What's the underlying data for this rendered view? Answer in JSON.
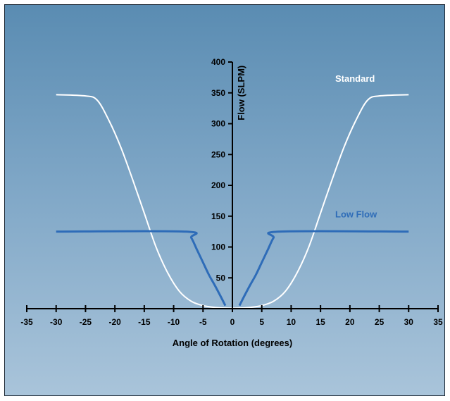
{
  "chart_data": {
    "type": "line",
    "title": "",
    "xlabel": "Angle of Rotation (degrees)",
    "ylabel": "Flow (SLPM)",
    "xlim": [
      -35,
      35
    ],
    "ylim": [
      0,
      400
    ],
    "x_ticks": [
      "-35",
      "-30",
      "-25",
      "-20",
      "-15",
      "-10",
      "-5",
      "0",
      "5",
      "10",
      "15",
      "20",
      "25",
      "30",
      "35"
    ],
    "y_ticks": [
      "50",
      "100",
      "150",
      "200",
      "250",
      "300",
      "350",
      "400"
    ],
    "legend": "inline labels near curves",
    "series": [
      {
        "name": "Standard",
        "color": "#ffffff",
        "x": [
          -30,
          -25,
          -23,
          -21,
          -19,
          -17,
          -15,
          -13,
          -11,
          -9,
          -7,
          -5,
          -3,
          -1,
          1,
          3,
          5,
          7,
          9,
          11,
          13,
          15,
          17,
          19,
          21,
          23,
          25,
          30
        ],
        "y": [
          347,
          345,
          338,
          305,
          262,
          210,
          155,
          100,
          58,
          28,
          12,
          5,
          2,
          1,
          1,
          2,
          5,
          12,
          28,
          58,
          100,
          155,
          210,
          262,
          305,
          338,
          345,
          347
        ]
      },
      {
        "name": "Low Flow",
        "color": "#2e6cb8",
        "x": [
          -30,
          -8,
          -7,
          -6,
          -5,
          -4,
          -3,
          -2,
          -1.2,
          1.2,
          2,
          3,
          4,
          5,
          6,
          7,
          8,
          30
        ],
        "y": [
          125,
          125,
          115,
          95,
          75,
          55,
          38,
          20,
          5,
          5,
          20,
          38,
          55,
          75,
          95,
          115,
          125,
          125
        ]
      }
    ]
  }
}
